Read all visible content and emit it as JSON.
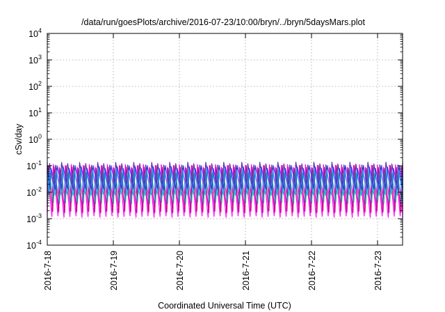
{
  "chart_data": {
    "type": "line",
    "title": "/data/run/goesPlots/archive/2016-07-23/10:00/bryn/../bryn/5daysMars.plot",
    "xlabel": "Coordinated Universal Time (UTC)",
    "ylabel": "cSv/day",
    "yscale": "log",
    "ylim": [
      0.0001,
      10000
    ],
    "y_ticks": [
      {
        "value": 0.0001,
        "base": "10",
        "exp": "-4"
      },
      {
        "value": 0.001,
        "base": "10",
        "exp": "-3"
      },
      {
        "value": 0.01,
        "base": "10",
        "exp": "-2"
      },
      {
        "value": 0.1,
        "base": "10",
        "exp": "-1"
      },
      {
        "value": 1,
        "base": "10",
        "exp": "0"
      },
      {
        "value": 10,
        "base": "10",
        "exp": "1"
      },
      {
        "value": 100,
        "base": "10",
        "exp": "2"
      },
      {
        "value": 1000,
        "base": "10",
        "exp": "3"
      },
      {
        "value": 10000,
        "base": "10",
        "exp": "4"
      }
    ],
    "xlim": [
      "2016-07-18",
      "2016-07-23 10:00"
    ],
    "x_ticks": [
      "2016-7-18",
      "2016-7-19",
      "2016-7-20",
      "2016-7-21",
      "2016-7-22",
      "2016-7-23"
    ],
    "grid": true,
    "legend": "none",
    "pattern": "sawtooth, about 11 cycles per day",
    "series": [
      {
        "color": "#ff00ff",
        "peak": 0.1,
        "trough": 0.0012
      },
      {
        "color": "#c8008c",
        "peak": 0.09,
        "trough": 0.0018
      },
      {
        "color": "#1fa0a0",
        "peak": 0.06,
        "trough": 0.004
      },
      {
        "color": "#5a28b4",
        "peak": 0.12,
        "trough": 0.01
      },
      {
        "color": "#19c8dc",
        "peak": 0.065,
        "trough": 0.008
      },
      {
        "color": "#2846e6",
        "peak": 0.09,
        "trough": 0.013
      }
    ]
  }
}
